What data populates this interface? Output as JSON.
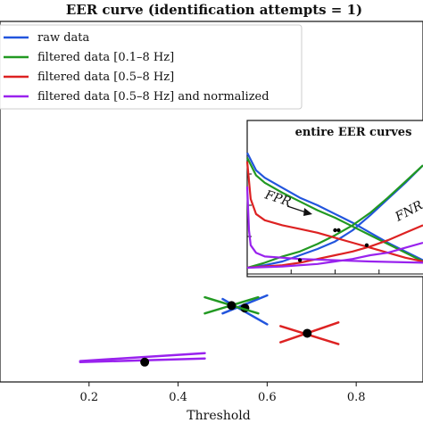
{
  "chart_data": [
    {
      "type": "line",
      "title": "EER curve (identification attempts = 1)",
      "xlabel": "Threshold",
      "ylabel": "",
      "xlim": [
        0.0,
        0.95
      ],
      "ylim": [
        0.0,
        1.0
      ],
      "x_ticks": [
        "0.2",
        "0.4",
        "0.6",
        "0.8"
      ],
      "x_tick_values": [
        0.2,
        0.4,
        0.6,
        0.8
      ],
      "grid": false,
      "legend_position": "top-left",
      "series": [
        {
          "name": "raw data",
          "color": "#2255dd",
          "eer_point": [
            0.55,
            0.205
          ],
          "fpr_segment": [
            [
              0.5,
              0.19
            ],
            [
              0.6,
              0.24
            ]
          ],
          "fnr_segment": [
            [
              0.5,
              0.23
            ],
            [
              0.6,
              0.16
            ]
          ]
        },
        {
          "name": "filtered data [0.1–8 Hz]",
          "color": "#229922",
          "eer_point": [
            0.52,
            0.212
          ],
          "fpr_segment": [
            [
              0.46,
              0.19
            ],
            [
              0.58,
              0.235
            ]
          ],
          "fnr_segment": [
            [
              0.46,
              0.235
            ],
            [
              0.58,
              0.19
            ]
          ]
        },
        {
          "name": "filtered data [0.5–8 Hz]",
          "color": "#dd2222",
          "eer_point": [
            0.69,
            0.135
          ],
          "fpr_segment": [
            [
              0.63,
              0.11
            ],
            [
              0.76,
              0.165
            ]
          ],
          "fnr_segment": [
            [
              0.63,
              0.155
            ],
            [
              0.76,
              0.105
            ]
          ]
        },
        {
          "name": "filtered data [0.5–8 Hz] and normalized",
          "color": "#9922ee",
          "eer_point": [
            0.325,
            0.055
          ],
          "fpr_segment": [
            [
              0.18,
              0.055
            ],
            [
              0.46,
              0.065
            ]
          ],
          "fnr_segment": [
            [
              0.18,
              0.058
            ],
            [
              0.46,
              0.08
            ]
          ]
        }
      ]
    },
    {
      "type": "line",
      "title": "entire EER curves",
      "annotations": [
        "FPR",
        "FNR"
      ],
      "xlim": [
        0.0,
        1.0
      ],
      "ylim": [
        0.0,
        1.0
      ],
      "series": [
        {
          "name": "raw data",
          "color": "#2255dd",
          "fpr": [
            [
              0,
              0.92
            ],
            [
              0.05,
              0.78
            ],
            [
              0.1,
              0.72
            ],
            [
              0.2,
              0.64
            ],
            [
              0.3,
              0.56
            ],
            [
              0.4,
              0.5
            ],
            [
              0.5,
              0.43
            ],
            [
              0.6,
              0.36
            ],
            [
              0.7,
              0.28
            ],
            [
              0.8,
              0.2
            ],
            [
              0.9,
              0.13
            ],
            [
              1.0,
              0.06
            ]
          ],
          "fnr": [
            [
              0,
              0.0
            ],
            [
              0.1,
              0.02
            ],
            [
              0.2,
              0.05
            ],
            [
              0.3,
              0.1
            ],
            [
              0.4,
              0.15
            ],
            [
              0.5,
              0.21
            ],
            [
              0.6,
              0.3
            ],
            [
              0.7,
              0.42
            ],
            [
              0.8,
              0.55
            ],
            [
              0.9,
              0.68
            ],
            [
              1.0,
              0.82
            ]
          ],
          "eer_point": [
            0.52,
            0.3
          ]
        },
        {
          "name": "filtered data [0.1–8 Hz]",
          "color": "#229922",
          "fpr": [
            [
              0,
              0.88
            ],
            [
              0.05,
              0.74
            ],
            [
              0.1,
              0.68
            ],
            [
              0.2,
              0.6
            ],
            [
              0.3,
              0.53
            ],
            [
              0.4,
              0.46
            ],
            [
              0.5,
              0.4
            ],
            [
              0.6,
              0.33
            ],
            [
              0.7,
              0.26
            ],
            [
              0.8,
              0.19
            ],
            [
              0.9,
              0.12
            ],
            [
              1.0,
              0.05
            ]
          ],
          "fnr": [
            [
              0,
              0.0
            ],
            [
              0.1,
              0.04
            ],
            [
              0.2,
              0.09
            ],
            [
              0.3,
              0.13
            ],
            [
              0.4,
              0.19
            ],
            [
              0.5,
              0.26
            ],
            [
              0.6,
              0.34
            ],
            [
              0.7,
              0.44
            ],
            [
              0.8,
              0.56
            ],
            [
              0.9,
              0.69
            ],
            [
              1.0,
              0.82
            ]
          ],
          "eer_point": [
            0.5,
            0.3
          ]
        },
        {
          "name": "filtered data [0.5–8 Hz]",
          "color": "#dd2222",
          "fpr": [
            [
              0,
              0.85
            ],
            [
              0.02,
              0.55
            ],
            [
              0.05,
              0.43
            ],
            [
              0.1,
              0.38
            ],
            [
              0.2,
              0.34
            ],
            [
              0.3,
              0.31
            ],
            [
              0.4,
              0.28
            ],
            [
              0.5,
              0.24
            ],
            [
              0.6,
              0.2
            ],
            [
              0.7,
              0.16
            ],
            [
              0.8,
              0.12
            ],
            [
              0.9,
              0.08
            ],
            [
              1.0,
              0.05
            ]
          ],
          "fnr": [
            [
              0,
              0.0
            ],
            [
              0.1,
              0.01
            ],
            [
              0.2,
              0.02
            ],
            [
              0.3,
              0.04
            ],
            [
              0.4,
              0.07
            ],
            [
              0.5,
              0.1
            ],
            [
              0.6,
              0.13
            ],
            [
              0.7,
              0.17
            ],
            [
              0.8,
              0.22
            ],
            [
              0.9,
              0.28
            ],
            [
              1.0,
              0.34
            ]
          ],
          "eer_point": [
            0.68,
            0.18
          ]
        },
        {
          "name": "filtered data [0.5–8 Hz] and normalized",
          "color": "#9922ee",
          "fpr": [
            [
              0,
              0.65
            ],
            [
              0.01,
              0.3
            ],
            [
              0.02,
              0.18
            ],
            [
              0.05,
              0.12
            ],
            [
              0.1,
              0.09
            ],
            [
              0.3,
              0.07
            ],
            [
              0.5,
              0.06
            ],
            [
              0.7,
              0.05
            ],
            [
              1.0,
              0.04
            ]
          ],
          "fnr": [
            [
              0,
              0.0
            ],
            [
              0.2,
              0.01
            ],
            [
              0.4,
              0.03
            ],
            [
              0.5,
              0.05
            ],
            [
              0.6,
              0.07
            ],
            [
              0.7,
              0.1
            ],
            [
              0.8,
              0.12
            ],
            [
              0.9,
              0.16
            ],
            [
              1.0,
              0.2
            ]
          ],
          "eer_point": [
            0.3,
            0.06
          ]
        }
      ]
    }
  ]
}
